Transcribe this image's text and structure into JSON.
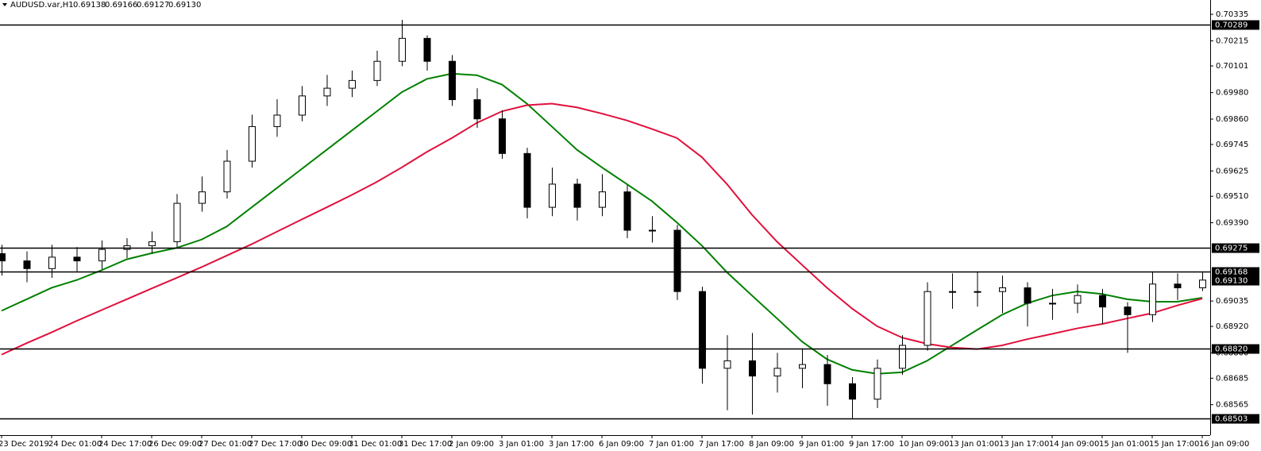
{
  "chart_data": {
    "type": "candlestick",
    "symbol": "AUDUSD.var,H1",
    "quote": [
      "0.69138",
      "0.69166",
      "0.69127",
      "0.69130"
    ],
    "categories": [
      "23 Dec 2019",
      null,
      "24 Dec 01:00",
      null,
      "24 Dec 17:00",
      null,
      "26 Dec 09:00",
      null,
      "27 Dec 01:00",
      null,
      "27 Dec 17:00",
      null,
      "30 Dec 09:00",
      null,
      "31 Dec 01:00",
      null,
      "31 Dec 17:00",
      null,
      "2 Jan 09:00",
      null,
      "3 Jan 01:00",
      null,
      "3 Jan 17:00",
      null,
      "6 Jan 09:00",
      null,
      "7 Jan 01:00",
      null,
      "7 Jan 17:00",
      null,
      "8 Jan 09:00",
      null,
      "9 Jan 01:00",
      null,
      "9 Jan 17:00",
      null,
      "10 Jan 09:00",
      null,
      "13 Jan 01:00",
      null,
      "13 Jan 17:00",
      null,
      "14 Jan 09:00",
      null,
      "15 Jan 01:00",
      null,
      "15 Jan 17:00",
      null,
      "16 Jan 09:00"
    ],
    "open": [
      0.6925,
      0.69217,
      0.69182,
      0.69234,
      0.69217,
      0.69269,
      0.69286,
      0.69304,
      0.69478,
      0.6953,
      0.69669,
      0.69826,
      0.69878,
      0.69965,
      0.7,
      0.70035,
      0.70122,
      0.70226,
      0.70122,
      0.69948,
      0.69861,
      0.69704,
      0.6946,
      0.69565,
      0.6946,
      0.6953,
      0.69356,
      0.69356,
      0.69078,
      0.6873,
      0.68764,
      0.68695,
      0.6873,
      0.68747,
      0.6866,
      0.6859,
      0.6873,
      0.68834,
      0.69078,
      0.69078,
      0.69078,
      0.69095,
      0.69025,
      0.69025,
      0.6906,
      0.69008,
      0.68973,
      0.69112,
      0.69095
    ],
    "high": [
      0.6929,
      0.6926,
      0.6929,
      0.6928,
      0.6931,
      0.6932,
      0.6935,
      0.6952,
      0.696,
      0.6972,
      0.6988,
      0.6995,
      0.7001,
      0.7006,
      0.7008,
      0.7017,
      0.7031,
      0.7024,
      0.7015,
      0.7,
      0.699,
      0.6973,
      0.6964,
      0.6959,
      0.6961,
      0.6956,
      0.6942,
      0.6938,
      0.691,
      0.6888,
      0.6889,
      0.688,
      0.6882,
      0.6879,
      0.6869,
      0.6877,
      0.6888,
      0.6912,
      0.6916,
      0.69168,
      0.6915,
      0.6912,
      0.6909,
      0.6911,
      0.6909,
      0.6903,
      0.69168,
      0.6916,
      0.69166
    ],
    "low": [
      0.6915,
      0.6912,
      0.6914,
      0.6917,
      0.6918,
      0.6923,
      0.6925,
      0.6928,
      0.6944,
      0.695,
      0.6964,
      0.6978,
      0.6985,
      0.6992,
      0.6996,
      0.7001,
      0.701,
      0.7008,
      0.6992,
      0.6982,
      0.6968,
      0.6941,
      0.6942,
      0.694,
      0.6942,
      0.6932,
      0.693,
      0.6904,
      0.6866,
      0.6854,
      0.6852,
      0.6862,
      0.6864,
      0.6856,
      0.68503,
      0.6855,
      0.687,
      0.6881,
      0.69,
      0.6901,
      0.6898,
      0.6892,
      0.6895,
      0.6898,
      0.6893,
      0.688,
      0.6894,
      0.6904,
      0.6908
    ],
    "close": [
      0.69217,
      0.69182,
      0.69234,
      0.69217,
      0.69269,
      0.69286,
      0.69304,
      0.69478,
      0.6953,
      0.69669,
      0.69826,
      0.69878,
      0.69965,
      0.7,
      0.70035,
      0.70122,
      0.70226,
      0.70122,
      0.69948,
      0.69861,
      0.69704,
      0.6946,
      0.69565,
      0.6946,
      0.6953,
      0.69356,
      0.69356,
      0.69078,
      0.6873,
      0.68764,
      0.68695,
      0.6873,
      0.68747,
      0.6866,
      0.6859,
      0.6873,
      0.68834,
      0.69078,
      0.69078,
      0.69078,
      0.69095,
      0.69025,
      0.69025,
      0.6906,
      0.69008,
      0.68973,
      0.69112,
      0.69095,
      0.6913
    ],
    "up_color": "#ffffff",
    "down_color": "#000000",
    "wick_color": "#000000",
    "series": [
      {
        "color": "#008000",
        "values": [
          0.68991,
          0.69043,
          0.69095,
          0.6913,
          0.69175,
          0.69224,
          0.69252,
          0.69276,
          0.69314,
          0.69373,
          0.6946,
          0.69547,
          0.69634,
          0.69721,
          0.69808,
          0.69895,
          0.69982,
          0.70042,
          0.70066,
          0.70059,
          0.70017,
          0.6993,
          0.69826,
          0.69721,
          0.69641,
          0.69565,
          0.69488,
          0.69391,
          0.69286,
          0.69165,
          0.6906,
          0.68956,
          0.68851,
          0.68771,
          0.68723,
          0.68705,
          0.68712,
          0.68764,
          0.68834,
          0.68904,
          0.68973,
          0.69025,
          0.6906,
          0.69078,
          0.69067,
          0.69043,
          0.69032,
          0.69032,
          0.6905
        ]
      },
      {
        "color": "#e0103c",
        "values": [
          0.68792,
          0.68844,
          0.68893,
          0.68945,
          0.68994,
          0.69043,
          0.69092,
          0.6914,
          0.69189,
          0.69241,
          0.69293,
          0.69349,
          0.69405,
          0.6946,
          0.69516,
          0.69575,
          0.69641,
          0.69711,
          0.69774,
          0.69843,
          0.69895,
          0.69923,
          0.6993,
          0.69913,
          0.69885,
          0.69854,
          0.69815,
          0.69774,
          0.69687,
          0.69565,
          0.69426,
          0.69304,
          0.69199,
          0.69095,
          0.69001,
          0.68921,
          0.68869,
          0.68841,
          0.68824,
          0.68817,
          0.68834,
          0.68862,
          0.68886,
          0.68911,
          0.68931,
          0.68956,
          0.6898,
          0.69015,
          0.69046
        ]
      }
    ],
    "levels": [
      0.70289,
      0.69275,
      {
        "value": 0.69168,
        "label": "0.69168"
      },
      {
        "value": 0.6882,
        "label": "0.68820"
      },
      0.68503
    ],
    "last_price": {
      "value": 0.6913,
      "label": "0.69130"
    },
    "ylim": [
      0.68427,
      0.704
    ],
    "yticks": [
      0.70335,
      0.70215,
      0.70101,
      {
        "value": 0.6998,
        "label": "0.69980"
      },
      {
        "value": 0.6986,
        "label": "0.69860"
      },
      0.69745,
      0.69625,
      {
        "value": 0.6951,
        "label": "0.69510"
      },
      {
        "value": 0.6939,
        "label": "0.69390"
      },
      0.69035,
      {
        "value": 0.6892,
        "label": "0.68920"
      },
      {
        "value": 0.688,
        "label": "0.68800"
      },
      0.68685,
      0.68565
    ]
  }
}
